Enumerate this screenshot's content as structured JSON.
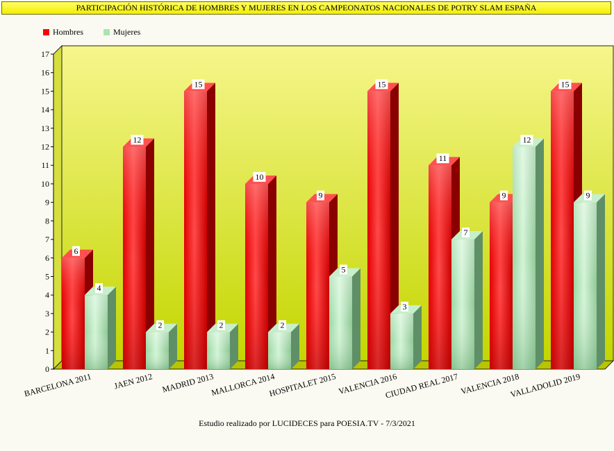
{
  "title": "PARTICIPACIÓN HISTÓRICA DE HOMBRES Y MUJERES EN LOS CAMPEONATOS NACIONALES DE POTRY SLAM ESPAÑA",
  "footer": "Estudio realizado por LUCIDECES para POESIA.TV - 7/3/2021",
  "colors": {
    "hombres": "#ff0000",
    "mujeres": "#a8e6b0",
    "plot_background_top": "#f7f77a",
    "plot_background_bottom": "#c8d800"
  },
  "chart_data": {
    "type": "bar",
    "style": "3d-clustered",
    "title": "PARTICIPACIÓN HISTÓRICA DE HOMBRES Y MUJERES EN LOS CAMPEONATOS NACIONALES DE POTRY SLAM ESPAÑA",
    "xlabel": "",
    "ylabel": "",
    "ylim": [
      0,
      17
    ],
    "yticks": [
      0,
      1,
      2,
      3,
      4,
      5,
      6,
      7,
      8,
      9,
      10,
      11,
      12,
      13,
      14,
      15,
      16,
      17
    ],
    "grid": false,
    "legend_position": "top-left",
    "categories": [
      "BARCELONA 2011",
      "JAEN 2012",
      "MADRID 2013",
      "MALLORCA 2014",
      "HOSPITALET 2015",
      "VALENCIA 2016",
      "CIUDAD REAL 2017",
      "VALENCIA 2018",
      "VALLADOLID 2019"
    ],
    "series": [
      {
        "name": "Hombres",
        "color": "#ff0000",
        "values": [
          6,
          12,
          15,
          10,
          9,
          15,
          11,
          9,
          15
        ]
      },
      {
        "name": "Mujeres",
        "color": "#a8e6b0",
        "values": [
          4,
          2,
          2,
          2,
          5,
          3,
          7,
          12,
          9
        ]
      }
    ]
  }
}
